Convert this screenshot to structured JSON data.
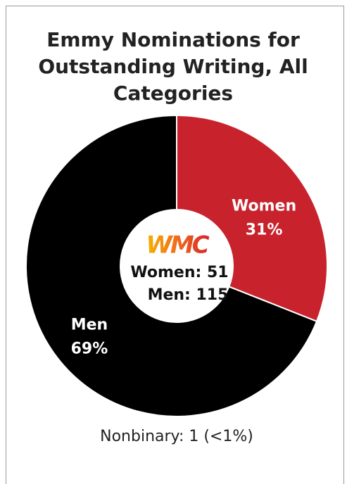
{
  "chart_data": {
    "type": "donut",
    "title": "Emmy Nominations for Outstanding Writing, All Categories",
    "categories": [
      "Women",
      "Men"
    ],
    "values": [
      31,
      69
    ],
    "value_labels": [
      "31%",
      "69%"
    ],
    "colors": [
      "#c8232c",
      "#000000"
    ],
    "logo": "WMC",
    "center_text": [
      "Women: 51",
      "Men: 115"
    ],
    "footnote": "Nonbinary: 1 (<1%)"
  }
}
